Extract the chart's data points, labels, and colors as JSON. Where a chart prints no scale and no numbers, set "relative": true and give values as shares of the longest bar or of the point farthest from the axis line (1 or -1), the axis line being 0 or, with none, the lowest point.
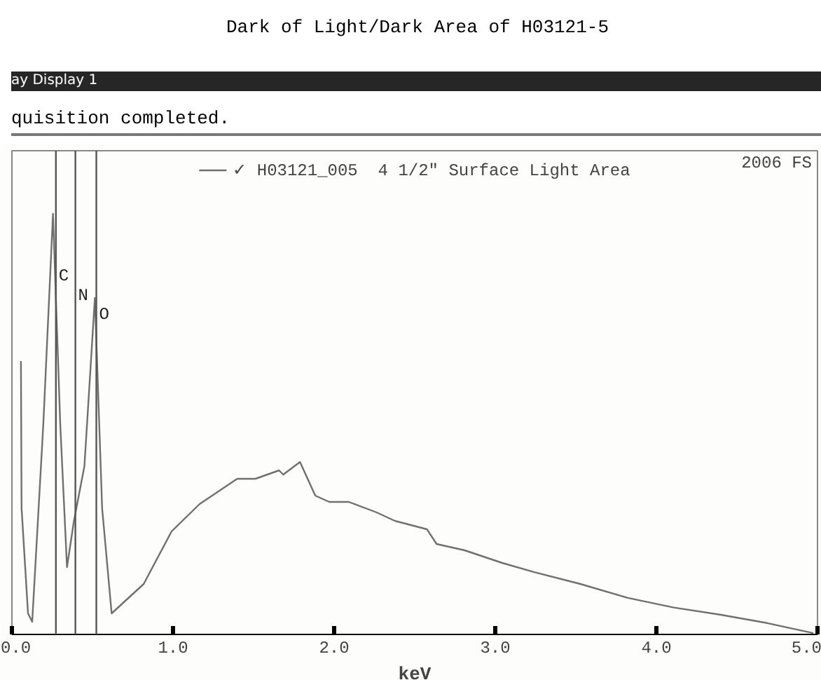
{
  "chart_data": {
    "type": "line",
    "title": "Dark of Light/Dark Area of H03121-5",
    "xlabel": "keV",
    "relative": true,
    "xlim": [
      0,
      5
    ],
    "xticks": [
      {
        "value": 0,
        "label": "0.0"
      },
      {
        "value": 1,
        "label": "1.0"
      },
      {
        "value": 2,
        "label": "2.0"
      },
      {
        "value": 3,
        "label": "3.0"
      },
      {
        "value": 4,
        "label": "4.0"
      },
      {
        "value": 5,
        "label": "5.0"
      }
    ],
    "series": [
      {
        "name": "✓ H03121_005  4 1/2\" Surface Light Area",
        "color": "#707070",
        "x": [
          0.056,
          0.06,
          0.1,
          0.126,
          0.195,
          0.255,
          0.3,
          0.342,
          0.385,
          0.45,
          0.515,
          0.56,
          0.619,
          0.818,
          0.991,
          1.165,
          1.398,
          1.511,
          1.658,
          1.684,
          1.788,
          1.883,
          1.97,
          2.091,
          2.264,
          2.377,
          2.576,
          2.636,
          2.81,
          3.043,
          3.242,
          3.528,
          3.823,
          4.108,
          4.394,
          4.688,
          4.974
        ],
        "values": [
          0.65,
          0.3,
          0.05,
          0.03,
          0.5,
          1.0,
          0.5,
          0.16,
          0.27,
          0.4,
          0.8,
          0.3,
          0.05,
          0.12,
          0.245,
          0.31,
          0.37,
          0.37,
          0.39,
          0.38,
          0.41,
          0.33,
          0.315,
          0.315,
          0.29,
          0.27,
          0.25,
          0.215,
          0.2,
          0.17,
          0.148,
          0.12,
          0.087,
          0.064,
          0.047,
          0.027,
          0.003
        ]
      }
    ],
    "ref_lines": [
      {
        "axis": "x",
        "value": 0.273,
        "label": "C",
        "color": "#555555"
      },
      {
        "axis": "x",
        "value": 0.394,
        "label": "N",
        "color": "#555555"
      },
      {
        "axis": "x",
        "value": 0.524,
        "label": "O",
        "color": "#555555"
      }
    ],
    "annotations": [
      "ay Display 1",
      "quisition completed.",
      "2006 FS"
    ],
    "legend": "top",
    "grid": false
  }
}
